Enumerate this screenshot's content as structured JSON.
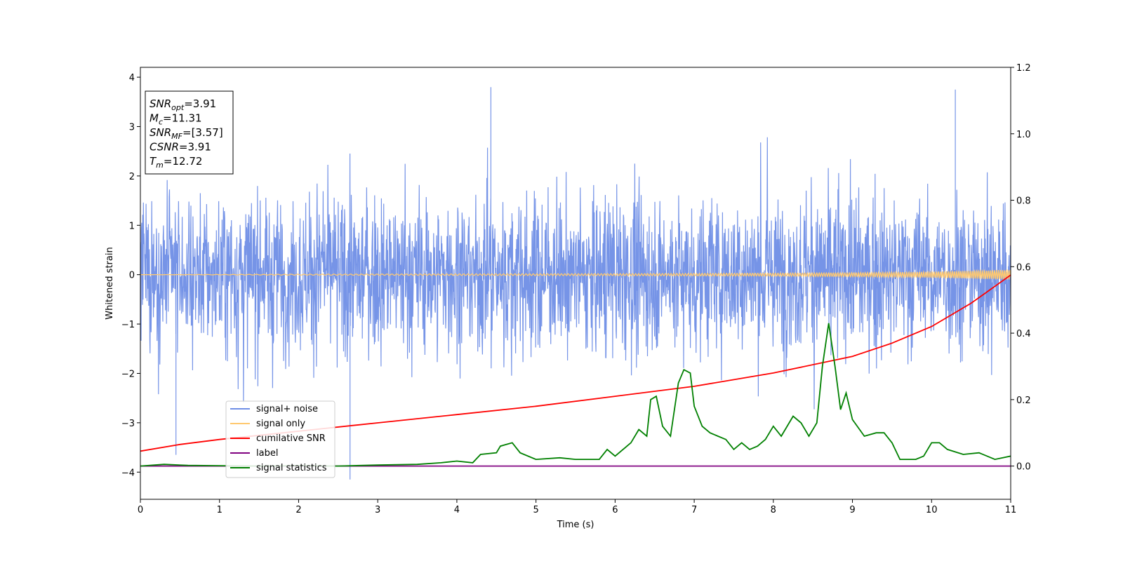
{
  "chart_data": {
    "type": "line",
    "title": "",
    "xlabel": "Time (s)",
    "ylabel": "Whitened strain",
    "xlim": [
      0,
      11
    ],
    "ylim": [
      -4.55,
      4.2
    ],
    "y2lim": [
      -0.1,
      1.2
    ],
    "x_ticks": [
      0,
      1,
      2,
      3,
      4,
      5,
      6,
      7,
      8,
      9,
      10,
      11
    ],
    "x_tick_labels": [
      "0",
      "1",
      "2",
      "3",
      "4",
      "5",
      "6",
      "7",
      "8",
      "9",
      "10",
      "11"
    ],
    "y_ticks": [
      -4,
      -3,
      -2,
      -1,
      0,
      1,
      2,
      3,
      4
    ],
    "y_tick_labels": [
      "−4",
      "−3",
      "−2",
      "−1",
      "0",
      "1",
      "2",
      "3",
      "4"
    ],
    "y2_ticks": [
      0.0,
      0.2,
      0.4,
      0.6,
      0.8,
      1.0,
      1.2
    ],
    "y2_tick_labels": [
      "0.0",
      "0.2",
      "0.4",
      "0.6",
      "0.8",
      "1.0",
      "1.2"
    ],
    "grid": false,
    "legend_position": "bottom-left",
    "series": [
      {
        "name": "signal+ noise",
        "color": "#6f8ee6",
        "axis": "left",
        "approximate_range": [
          -4.15,
          3.8
        ],
        "peaks": [
          {
            "x": 0.45,
            "y": -3.65
          },
          {
            "x": 2.65,
            "y": -4.15
          },
          {
            "x": 4.43,
            "y": 3.8
          },
          {
            "x": 10.3,
            "y": 3.75
          }
        ]
      },
      {
        "name": "signal only",
        "color": "#ffc970",
        "axis": "left",
        "points": [
          [
            0,
            0.0
          ],
          [
            2,
            0.01
          ],
          [
            4,
            0.015
          ],
          [
            6,
            0.02
          ],
          [
            8,
            0.03
          ],
          [
            9,
            0.04
          ],
          [
            10,
            0.06
          ],
          [
            10.5,
            0.08
          ],
          [
            11,
            0.1
          ]
        ]
      },
      {
        "name": "cumilative SNR",
        "color": "#ff0000",
        "axis": "right",
        "points": [
          [
            0,
            0.045
          ],
          [
            0.5,
            0.065
          ],
          [
            1,
            0.08
          ],
          [
            2,
            0.105
          ],
          [
            3,
            0.13
          ],
          [
            4,
            0.155
          ],
          [
            5,
            0.18
          ],
          [
            6,
            0.21
          ],
          [
            7,
            0.24
          ],
          [
            8,
            0.28
          ],
          [
            9,
            0.33
          ],
          [
            9.5,
            0.37
          ],
          [
            10,
            0.42
          ],
          [
            10.5,
            0.49
          ],
          [
            11,
            0.575
          ]
        ]
      },
      {
        "name": "label",
        "color": "#800080",
        "axis": "right",
        "points": [
          [
            0,
            0.0
          ],
          [
            11,
            0.0
          ]
        ]
      },
      {
        "name": "signal statistics",
        "color": "#008000",
        "axis": "right",
        "points": [
          [
            0,
            0.0
          ],
          [
            0.3,
            0.005
          ],
          [
            0.6,
            0.002
          ],
          [
            1,
            0.001
          ],
          [
            1.5,
            0.0
          ],
          [
            2,
            0.001
          ],
          [
            2.5,
            0.0
          ],
          [
            3,
            0.003
          ],
          [
            3.5,
            0.005
          ],
          [
            3.8,
            0.01
          ],
          [
            4.0,
            0.015
          ],
          [
            4.2,
            0.01
          ],
          [
            4.3,
            0.035
          ],
          [
            4.5,
            0.04
          ],
          [
            4.55,
            0.06
          ],
          [
            4.7,
            0.07
          ],
          [
            4.8,
            0.04
          ],
          [
            5.0,
            0.02
          ],
          [
            5.3,
            0.025
          ],
          [
            5.5,
            0.02
          ],
          [
            5.8,
            0.02
          ],
          [
            5.9,
            0.05
          ],
          [
            6.0,
            0.03
          ],
          [
            6.2,
            0.07
          ],
          [
            6.3,
            0.11
          ],
          [
            6.4,
            0.09
          ],
          [
            6.45,
            0.2
          ],
          [
            6.52,
            0.21
          ],
          [
            6.6,
            0.12
          ],
          [
            6.7,
            0.09
          ],
          [
            6.8,
            0.25
          ],
          [
            6.87,
            0.29
          ],
          [
            6.95,
            0.28
          ],
          [
            7.0,
            0.18
          ],
          [
            7.1,
            0.12
          ],
          [
            7.2,
            0.1
          ],
          [
            7.3,
            0.09
          ],
          [
            7.4,
            0.08
          ],
          [
            7.5,
            0.05
          ],
          [
            7.6,
            0.07
          ],
          [
            7.7,
            0.05
          ],
          [
            7.8,
            0.06
          ],
          [
            7.9,
            0.08
          ],
          [
            8.0,
            0.12
          ],
          [
            8.1,
            0.09
          ],
          [
            8.25,
            0.15
          ],
          [
            8.35,
            0.13
          ],
          [
            8.45,
            0.09
          ],
          [
            8.55,
            0.13
          ],
          [
            8.62,
            0.3
          ],
          [
            8.7,
            0.43
          ],
          [
            8.78,
            0.3
          ],
          [
            8.85,
            0.17
          ],
          [
            8.92,
            0.22
          ],
          [
            9.0,
            0.14
          ],
          [
            9.15,
            0.09
          ],
          [
            9.3,
            0.1
          ],
          [
            9.4,
            0.1
          ],
          [
            9.5,
            0.07
          ],
          [
            9.6,
            0.02
          ],
          [
            9.8,
            0.02
          ],
          [
            9.9,
            0.03
          ],
          [
            10.0,
            0.07
          ],
          [
            10.1,
            0.07
          ],
          [
            10.2,
            0.05
          ],
          [
            10.4,
            0.035
          ],
          [
            10.6,
            0.04
          ],
          [
            10.8,
            0.02
          ],
          [
            11.0,
            0.03
          ]
        ]
      }
    ],
    "annotations": {
      "lines": [
        {
          "name": "SNR",
          "sub": "opt",
          "value": "=3.91"
        },
        {
          "name": "M",
          "sub": "c",
          "value": "=11.31"
        },
        {
          "name": "SNR",
          "sub": "MF",
          "value": "=[3.57]"
        },
        {
          "name": "CSNR",
          "sub": "",
          "value": "=3.91"
        },
        {
          "name": "T",
          "sub": "m",
          "value": "=12.72"
        }
      ]
    }
  }
}
